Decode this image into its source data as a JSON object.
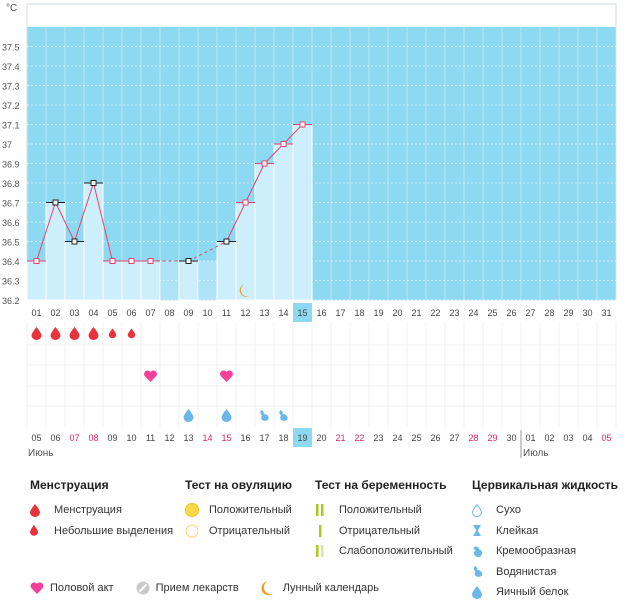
{
  "chart_data": {
    "type": "line",
    "ylabel": "°C",
    "y_ticks": [
      "36.2",
      "36.3",
      "36.4",
      "36.5",
      "36.6",
      "36.7",
      "36.8",
      "36.9",
      "37",
      "37.1",
      "37.2",
      "37.3",
      "37.4",
      "37.5"
    ],
    "ylim": [
      36.2,
      37.6
    ],
    "cycle_days": [
      "01",
      "02",
      "03",
      "04",
      "05",
      "06",
      "07",
      "08",
      "09",
      "10",
      "11",
      "12",
      "13",
      "14",
      "15",
      "16",
      "17",
      "18",
      "19",
      "20",
      "21",
      "22",
      "23",
      "24",
      "25",
      "26",
      "27",
      "28",
      "29",
      "30",
      "31"
    ],
    "dates": [
      "05",
      "06",
      "07",
      "08",
      "09",
      "10",
      "11",
      "12",
      "13",
      "14",
      "15",
      "16",
      "17",
      "18",
      "19",
      "20",
      "21",
      "22",
      "23",
      "24",
      "25",
      "26",
      "27",
      "28",
      "29",
      "30",
      "01",
      "02",
      "03",
      "04",
      "05"
    ],
    "weekend_dates_index": [
      2,
      3,
      9,
      10,
      16,
      17,
      23,
      24,
      30
    ],
    "today_index": 14,
    "month_labels": [
      {
        "label": "Июнь",
        "index": 0
      },
      {
        "label": "Июль",
        "index": 26
      }
    ],
    "temperatures": [
      36.4,
      36.7,
      36.5,
      36.8,
      36.4,
      36.4,
      36.4,
      null,
      36.4,
      null,
      36.5,
      36.7,
      36.9,
      37.0,
      37.1
    ],
    "excluded_points": [
      1,
      2,
      3,
      8,
      10
    ],
    "menstruation": [
      "heavy",
      "heavy",
      "heavy",
      "heavy",
      "light",
      "light",
      null,
      null,
      null,
      null,
      null,
      null,
      null,
      null,
      null
    ],
    "intercourse_days": [
      6,
      10
    ],
    "lunar_days": [
      11
    ],
    "cervical_fluid": [
      {
        "index": 8,
        "type": "egg-white"
      },
      {
        "index": 10,
        "type": "egg-white"
      },
      {
        "index": 12,
        "type": "watery"
      },
      {
        "index": 13,
        "type": "watery"
      }
    ]
  },
  "legend": {
    "menstruation": {
      "title": "Менструация",
      "items": [
        "Менструация",
        "Небольшие выделения"
      ]
    },
    "ovulation_test": {
      "title": "Тест на овуляцию",
      "items": [
        "Положительный",
        "Отрицательный"
      ]
    },
    "pregnancy_test": {
      "title": "Тест на беременность",
      "items": [
        "Положительный",
        "Отрицательный",
        "Слабоположительный"
      ]
    },
    "cervical_fluid": {
      "title": "Цервикальная жидкость",
      "items": [
        "Сухо",
        "Клейкая",
        "Кремообразная",
        "Водянистая",
        "Яичный белок"
      ]
    },
    "bottom": [
      "Половой акт",
      "Прием лекарств",
      "Лунный календарь"
    ]
  },
  "colors": {
    "sky": "#8ed9f2",
    "bar": "#cdeefb",
    "line": "#e8436f",
    "today": "#8ed9f2",
    "weekend": "#e0245e",
    "drop": "#e8333d",
    "heart": "#f2409b",
    "moon": "#f29a1e",
    "fluid": "#6ab7ea",
    "test_green": "#a9c91f"
  }
}
